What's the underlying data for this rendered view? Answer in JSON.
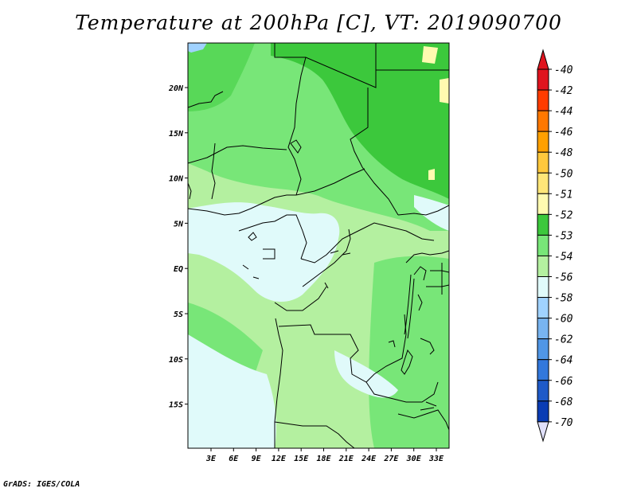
{
  "title": "Temperature at 200hPa [C], VT: 2019090700",
  "credit": "GrADS: IGES/COLA",
  "x_axis": {
    "labels": [
      "3E",
      "6E",
      "9E",
      "12E",
      "15E",
      "18E",
      "21E",
      "24E",
      "27E",
      "30E",
      "33E"
    ]
  },
  "y_axis": {
    "labels": [
      "20N",
      "15N",
      "10N",
      "5N",
      "EQ",
      "5S",
      "10S",
      "15S"
    ]
  },
  "legend": {
    "entries": [
      {
        "label": "-40",
        "color": "#e0141e"
      },
      {
        "label": "-42",
        "color": "#ff3c00"
      },
      {
        "label": "-44",
        "color": "#ff7800"
      },
      {
        "label": "-46",
        "color": "#ffa000"
      },
      {
        "label": "-48",
        "color": "#ffc83c"
      },
      {
        "label": "-50",
        "color": "#ffe678"
      },
      {
        "label": "-51",
        "color": "#fffab0"
      },
      {
        "label": "-52",
        "color": "#3cc83c"
      },
      {
        "label": "-53",
        "color": "#78e678"
      },
      {
        "label": "-54",
        "color": "#b4f0a0"
      },
      {
        "label": "-56",
        "color": "#e0fafa"
      },
      {
        "label": "-58",
        "color": "#a0d2ff"
      },
      {
        "label": "-60",
        "color": "#78b4f0"
      },
      {
        "label": "-62",
        "color": "#5096e6"
      },
      {
        "label": "-64",
        "color": "#3278dc"
      },
      {
        "label": "-66",
        "color": "#1e5ac8"
      },
      {
        "label": "-68",
        "color": "#0a3cb4"
      },
      {
        "label": "-70",
        "color": "#0a148c"
      }
    ],
    "low_arrow_color": "#e0e0fa"
  }
}
